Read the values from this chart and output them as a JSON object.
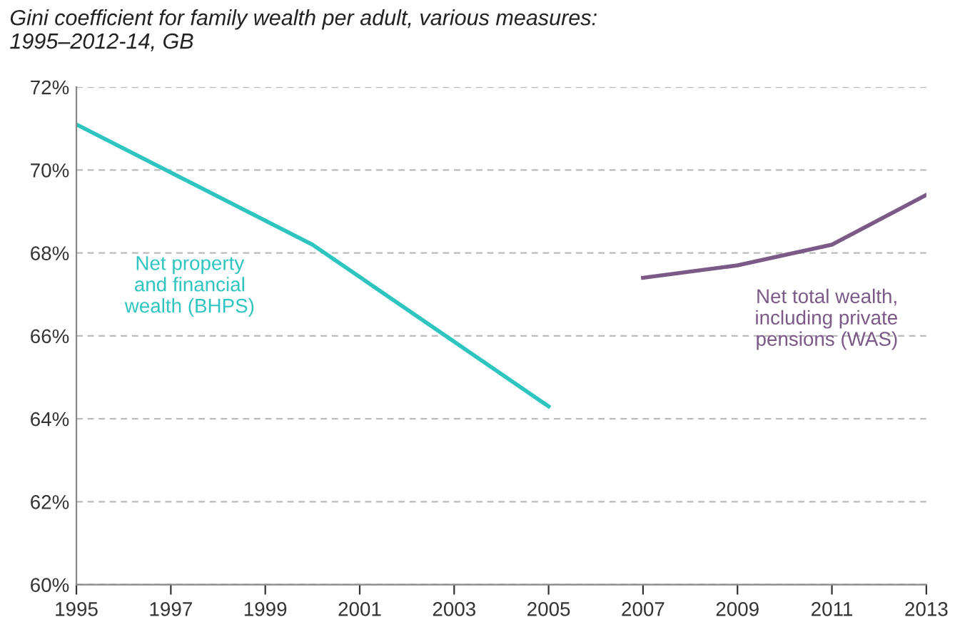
{
  "chart_data": {
    "type": "line",
    "title": "Gini coefficient for family wealth per adult, various measures:\n1995–2012-14, GB",
    "series": [
      {
        "name": "Net property\nand financial\nwealth (BHPS)",
        "color": "#2ec4c0",
        "x": [
          1995,
          2000,
          2005
        ],
        "values": [
          71.1,
          68.2,
          64.3
        ]
      },
      {
        "name": "Net total wealth,\nincluding private\npensions (WAS)",
        "color": "#7b5a88",
        "x": [
          2007,
          2009,
          2011,
          2013
        ],
        "values": [
          67.4,
          67.7,
          68.2,
          69.4
        ]
      }
    ],
    "xlim": [
      1995,
      2013
    ],
    "xticks": [
      1995,
      1997,
      1999,
      2001,
      2003,
      2005,
      2007,
      2009,
      2011,
      2013
    ],
    "ylim": [
      60,
      72
    ],
    "yticks": [
      {
        "value": 60,
        "label": "60%"
      },
      {
        "value": 62,
        "label": "62%"
      },
      {
        "value": 64,
        "label": "64%"
      },
      {
        "value": 66,
        "label": "66%"
      },
      {
        "value": 68,
        "label": "68%"
      },
      {
        "value": 70,
        "label": "70%"
      },
      {
        "value": 72,
        "label": "72%"
      }
    ],
    "grid": "y",
    "legend": false,
    "line_style": "solid",
    "marker": "none"
  }
}
